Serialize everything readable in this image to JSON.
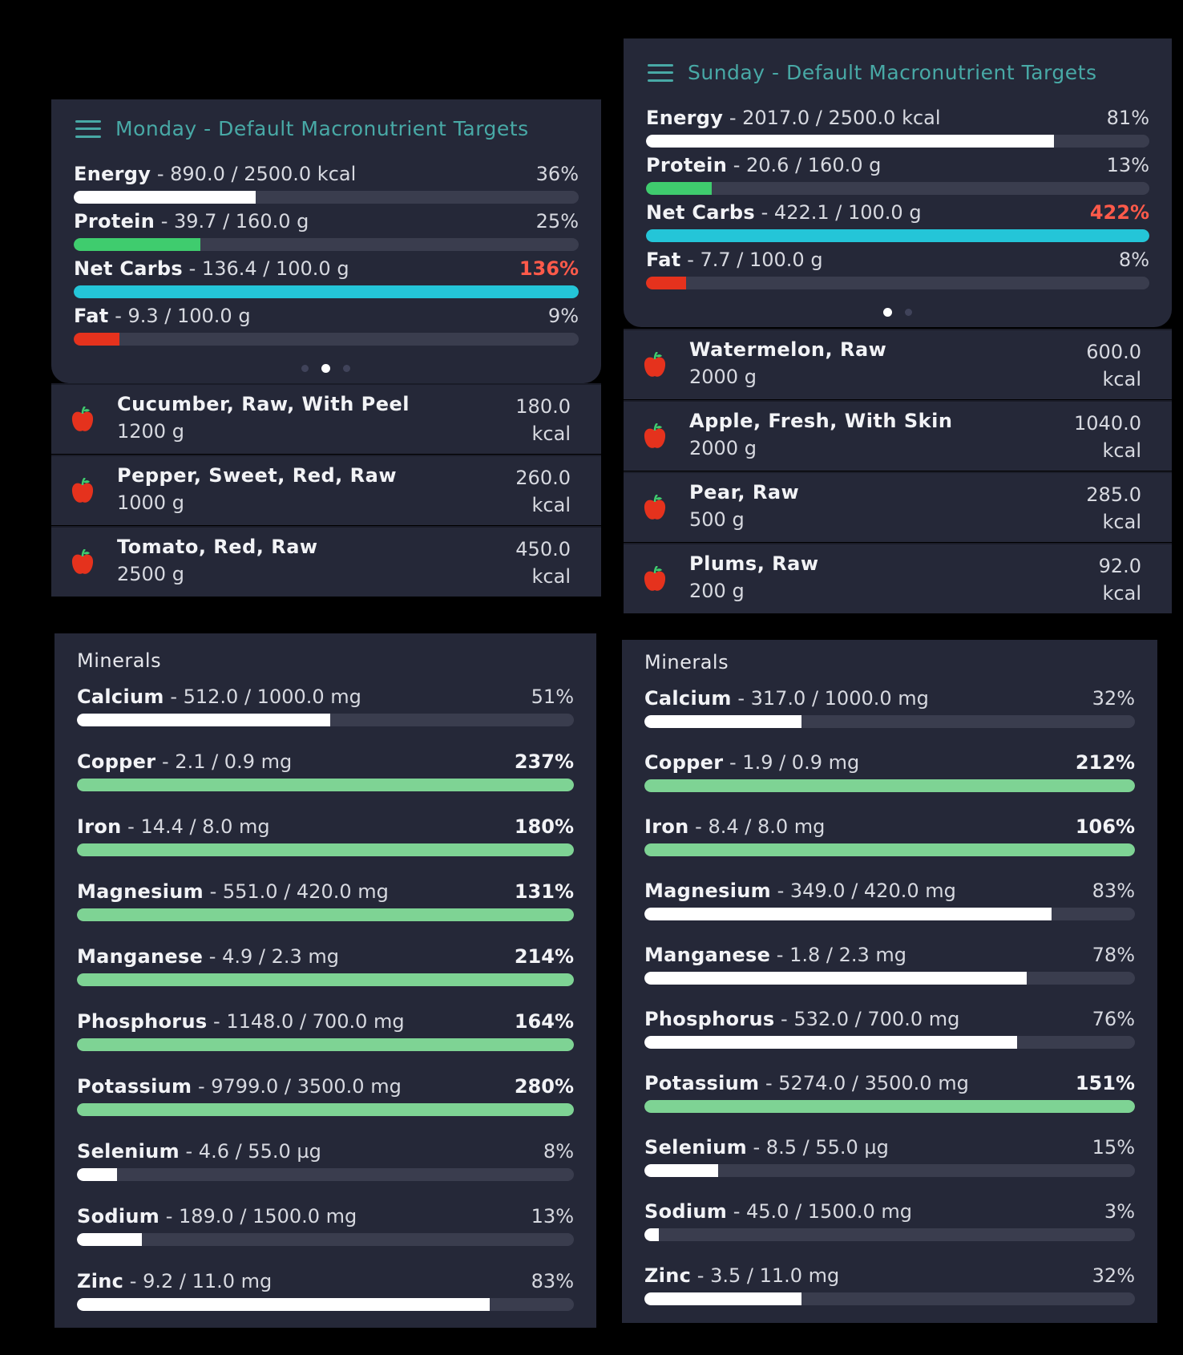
{
  "colors": {
    "accent": "#48a9a6",
    "energy": "#ffffff",
    "protein": "#3fcc6e",
    "net_carbs": "#24c5d8",
    "fat": "#e5321d",
    "over": "#ff5a4a",
    "mineral_over": "#7ed394",
    "track": "#3a3d4e",
    "panel": "#252838"
  },
  "monday": {
    "title": "Monday - Default Macronutrient Targets",
    "nutrients": [
      {
        "name": "Energy",
        "value": " - 890.0 / 2500.0 kcal",
        "pct": "36%",
        "ratio": 0.36,
        "over": false
      },
      {
        "name": "Protein",
        "value": " - 39.7 / 160.0 g",
        "pct": "25%",
        "ratio": 0.25,
        "over": false
      },
      {
        "name": "Net Carbs",
        "value": " - 136.4 / 100.0 g",
        "pct": "136%",
        "ratio": 1.36,
        "over": true
      },
      {
        "name": "Fat",
        "value": " - 9.3 / 100.0 g",
        "pct": "9%",
        "ratio": 0.09,
        "over": false
      }
    ],
    "foods": [
      {
        "name": "Cucumber, Raw, With Peel",
        "qty": "1200 g",
        "kcal": "180.0",
        "unit": "kcal"
      },
      {
        "name": "Pepper, Sweet, Red, Raw",
        "qty": "1000 g",
        "kcal": "260.0",
        "unit": "kcal"
      },
      {
        "name": "Tomato, Red, Raw",
        "qty": "2500 g",
        "kcal": "450.0",
        "unit": "kcal"
      }
    ]
  },
  "sunday": {
    "title": "Sunday - Default Macronutrient Targets",
    "nutrients": [
      {
        "name": "Energy",
        "value": " - 2017.0 / 2500.0 kcal",
        "pct": "81%",
        "ratio": 0.81,
        "over": false
      },
      {
        "name": "Protein",
        "value": " - 20.6 / 160.0 g",
        "pct": "13%",
        "ratio": 0.13,
        "over": false
      },
      {
        "name": "Net Carbs",
        "value": " - 422.1 / 100.0 g",
        "pct": "422%",
        "ratio": 4.22,
        "over": true
      },
      {
        "name": "Fat",
        "value": " - 7.7 / 100.0 g",
        "pct": "8%",
        "ratio": 0.08,
        "over": false
      }
    ],
    "foods": [
      {
        "name": "Watermelon, Raw",
        "qty": "2000 g",
        "kcal": "600.0",
        "unit": "kcal"
      },
      {
        "name": "Apple, Fresh, With Skin",
        "qty": "2000 g",
        "kcal": "1040.0",
        "unit": "kcal"
      },
      {
        "name": "Pear, Raw",
        "qty": "500 g",
        "kcal": "285.0",
        "unit": "kcal"
      },
      {
        "name": "Plums, Raw",
        "qty": "200 g",
        "kcal": "92.0",
        "unit": "kcal"
      }
    ]
  },
  "minerals_left": {
    "title": "Minerals",
    "items": [
      {
        "name": "Calcium",
        "value": " - 512.0 / 1000.0 mg",
        "pct": "51%",
        "ratio": 0.51
      },
      {
        "name": "Copper",
        "value": " - 2.1 / 0.9 mg",
        "pct": "237%",
        "ratio": 2.37
      },
      {
        "name": "Iron",
        "value": " - 14.4 / 8.0 mg",
        "pct": "180%",
        "ratio": 1.8
      },
      {
        "name": "Magnesium",
        "value": " - 551.0 / 420.0 mg",
        "pct": "131%",
        "ratio": 1.31
      },
      {
        "name": "Manganese",
        "value": " - 4.9 / 2.3 mg",
        "pct": "214%",
        "ratio": 2.14
      },
      {
        "name": "Phosphorus",
        "value": " - 1148.0 / 700.0 mg",
        "pct": "164%",
        "ratio": 1.64
      },
      {
        "name": "Potassium",
        "value": " - 9799.0 / 3500.0 mg",
        "pct": "280%",
        "ratio": 2.8
      },
      {
        "name": "Selenium",
        "value": " - 4.6 / 55.0 µg",
        "pct": "8%",
        "ratio": 0.08
      },
      {
        "name": "Sodium",
        "value": " - 189.0 / 1500.0 mg",
        "pct": "13%",
        "ratio": 0.13
      },
      {
        "name": "Zinc",
        "value": " - 9.2 / 11.0 mg",
        "pct": "83%",
        "ratio": 0.83
      }
    ]
  },
  "minerals_right": {
    "title": "Minerals",
    "items": [
      {
        "name": "Calcium",
        "value": " - 317.0 / 1000.0 mg",
        "pct": "32%",
        "ratio": 0.32
      },
      {
        "name": "Copper",
        "value": " - 1.9 / 0.9 mg",
        "pct": "212%",
        "ratio": 2.12
      },
      {
        "name": "Iron",
        "value": " - 8.4 / 8.0 mg",
        "pct": "106%",
        "ratio": 1.06
      },
      {
        "name": "Magnesium",
        "value": " - 349.0 / 420.0 mg",
        "pct": "83%",
        "ratio": 0.83
      },
      {
        "name": "Manganese",
        "value": " - 1.8 / 2.3 mg",
        "pct": "78%",
        "ratio": 0.78
      },
      {
        "name": "Phosphorus",
        "value": " - 532.0 / 700.0 mg",
        "pct": "76%",
        "ratio": 0.76
      },
      {
        "name": "Potassium",
        "value": " - 5274.0 / 3500.0 mg",
        "pct": "151%",
        "ratio": 1.51
      },
      {
        "name": "Selenium",
        "value": " - 8.5 / 55.0 µg",
        "pct": "15%",
        "ratio": 0.15
      },
      {
        "name": "Sodium",
        "value": " - 45.0 / 1500.0 mg",
        "pct": "3%",
        "ratio": 0.03
      },
      {
        "name": "Zinc",
        "value": " - 3.5 / 11.0 mg",
        "pct": "32%",
        "ratio": 0.32
      }
    ]
  }
}
